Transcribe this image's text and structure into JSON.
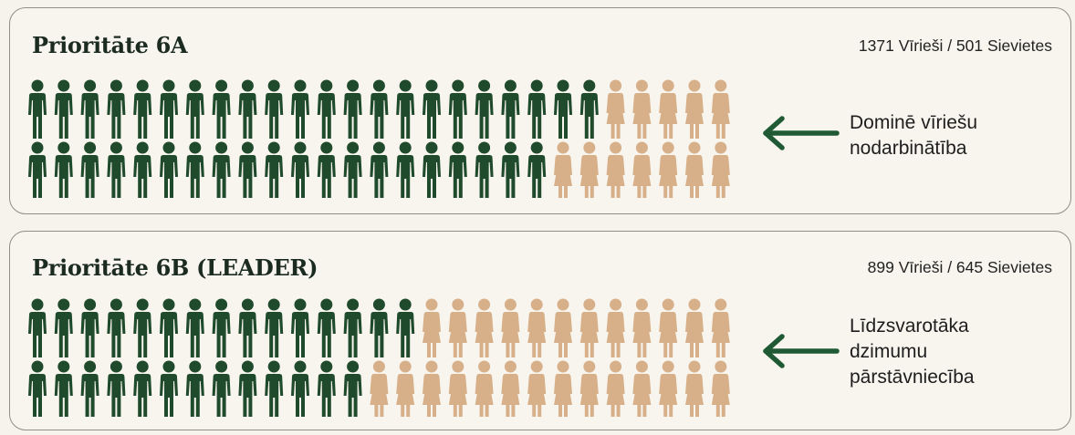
{
  "colors": {
    "male": "#1f4a2c",
    "female": "#d7b08a",
    "arrow": "#1f5a35"
  },
  "icons": {
    "male": "male-figure-icon",
    "female": "female-figure-icon",
    "arrow": "arrow-left-icon"
  },
  "panels": [
    {
      "title": "Prioritāte 6A",
      "counts": "1371 Vīrieši / 501 Sievietes",
      "annotation_lines": [
        "Dominē vīriešu",
        "nodarbinātība"
      ]
    },
    {
      "title": "Prioritāte 6B (LEADER)",
      "counts": "899 Vīrieši / 645 Sievietes",
      "annotation_lines": [
        "Līdzsvarotāka",
        "dzimumu",
        "pārstāvniecība"
      ]
    }
  ],
  "chart_data": [
    {
      "type": "pictogram",
      "title": "Prioritāte 6A",
      "series": [
        {
          "name": "Vīrieši",
          "value": 1371
        },
        {
          "name": "Sievietes",
          "value": 501
        }
      ],
      "rows": [
        {
          "male": 22,
          "female": 5
        },
        {
          "male": 20,
          "female": 7
        }
      ]
    },
    {
      "type": "pictogram",
      "title": "Prioritāte 6B (LEADER)",
      "series": [
        {
          "name": "Vīrieši",
          "value": 899
        },
        {
          "name": "Sievietes",
          "value": 645
        }
      ],
      "rows": [
        {
          "male": 15,
          "female": 12
        },
        {
          "male": 13,
          "female": 14
        }
      ]
    }
  ]
}
